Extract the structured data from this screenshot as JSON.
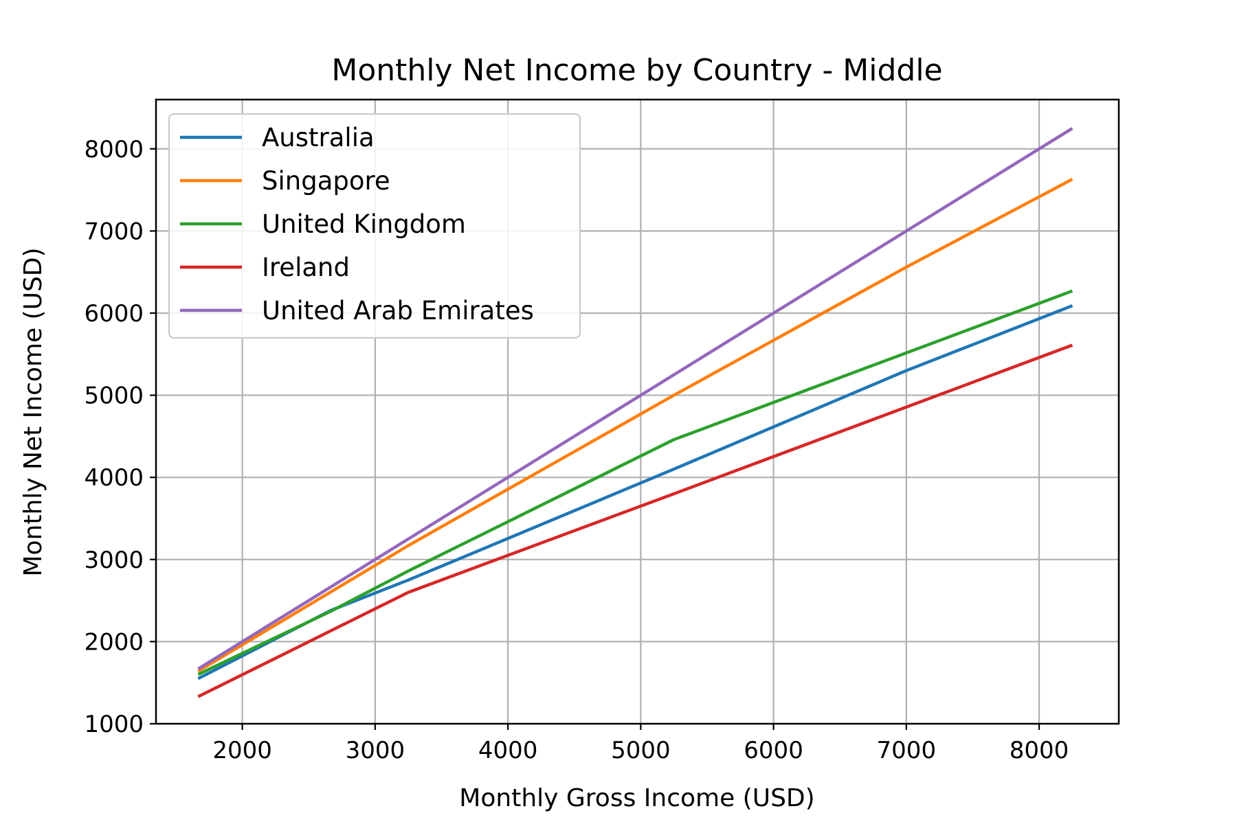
{
  "chart_data": {
    "type": "line",
    "title": "Monthly Net Income by Country - Middle",
    "xlabel": "Monthly Gross Income (USD)",
    "ylabel": "Monthly Net Income (USD)",
    "xlim": [
      1350,
      8600
    ],
    "ylim": [
      1000,
      8600
    ],
    "xticks": [
      2000,
      3000,
      4000,
      5000,
      6000,
      7000,
      8000
    ],
    "yticks": [
      1000,
      2000,
      3000,
      4000,
      5000,
      6000,
      7000,
      8000
    ],
    "grid": true,
    "legend_position": "upper-left",
    "series": [
      {
        "name": "Australia",
        "color": "#1f77b4",
        "points": [
          [
            1667,
            1550
          ],
          [
            2667,
            2380
          ],
          [
            3250,
            2750
          ],
          [
            5250,
            4100
          ],
          [
            7000,
            5300
          ],
          [
            8250,
            6090
          ]
        ]
      },
      {
        "name": "Singapore",
        "color": "#ff7f0e",
        "points": [
          [
            1667,
            1640
          ],
          [
            3250,
            3170
          ],
          [
            5250,
            5000
          ],
          [
            7000,
            6560
          ],
          [
            8250,
            7630
          ]
        ]
      },
      {
        "name": "United Kingdom",
        "color": "#2ca02c",
        "points": [
          [
            1667,
            1600
          ],
          [
            2667,
            2370
          ],
          [
            3250,
            2860
          ],
          [
            5250,
            4460
          ],
          [
            8250,
            6270
          ]
        ]
      },
      {
        "name": "Ireland",
        "color": "#d62728",
        "points": [
          [
            1667,
            1330
          ],
          [
            3250,
            2600
          ],
          [
            5250,
            3800
          ],
          [
            8250,
            5610
          ]
        ]
      },
      {
        "name": "United Arab Emirates",
        "color": "#9467bd",
        "points": [
          [
            1667,
            1667
          ],
          [
            8250,
            8250
          ]
        ]
      }
    ]
  }
}
